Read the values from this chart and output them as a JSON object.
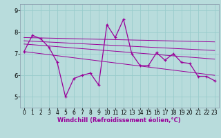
{
  "x": [
    0,
    1,
    2,
    3,
    4,
    5,
    6,
    7,
    8,
    9,
    10,
    11,
    12,
    13,
    14,
    15,
    16,
    17,
    18,
    19,
    20,
    21,
    22,
    23
  ],
  "y_main": [
    7.1,
    7.85,
    7.7,
    7.3,
    6.6,
    5.0,
    5.85,
    6.0,
    6.1,
    5.55,
    8.35,
    7.75,
    8.6,
    7.0,
    6.45,
    6.45,
    7.05,
    6.7,
    7.0,
    6.6,
    6.55,
    5.95,
    5.95,
    5.75
  ],
  "trend1_x": [
    0,
    23
  ],
  "trend1_y": [
    7.75,
    7.55
  ],
  "trend2_x": [
    0,
    23
  ],
  "trend2_y": [
    7.6,
    7.15
  ],
  "trend3_x": [
    0,
    23
  ],
  "trend3_y": [
    7.45,
    6.75
  ],
  "trend4_x": [
    0,
    23
  ],
  "trend4_y": [
    7.1,
    6.0
  ],
  "line_color": "#990099",
  "bg_color": "#b8dcdc",
  "grid_color": "#99cccc",
  "xlabel": "Windchill (Refroidissement éolien,°C)",
  "xlim": [
    -0.5,
    23.5
  ],
  "ylim": [
    4.5,
    9.3
  ],
  "yticks": [
    5,
    6,
    7,
    8,
    9
  ],
  "xticks": [
    0,
    1,
    2,
    3,
    4,
    5,
    6,
    7,
    8,
    9,
    10,
    11,
    12,
    13,
    14,
    15,
    16,
    17,
    18,
    19,
    20,
    21,
    22,
    23
  ],
  "tick_fontsize": 5.5,
  "xlabel_fontsize": 6.0,
  "spine_color": "#8899aa"
}
